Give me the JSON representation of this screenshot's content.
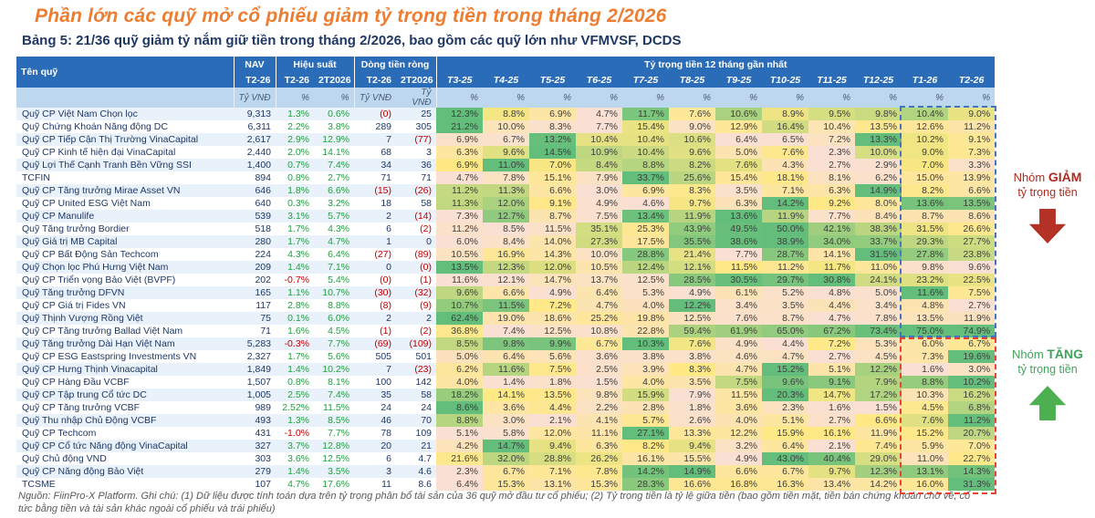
{
  "title": "Phần lớn các quỹ mở cổ phiếu giảm tỷ trọng tiền trong tháng 2/2026",
  "subtitle": "Bảng 5: 21/36 quỹ giảm tỷ nắm giữ tiền trong tháng 2/2026, bao gồm các quỹ lớn như VFMVSF, DCDS",
  "footer": "Nguồn: FiinPro-X Platform. Ghi chú: (1) Dữ liệu được tính toán dựa trên tỷ trọng phân bổ tài sản của 36 quỹ mở đầu tư cổ phiếu; (2) Tỷ trọng tiền là tỷ lệ giữa tiền (bao gồm tiền mặt, tiền bán chứng khoán chờ về, cổ tức bằng tiền và tài sản khác ngoài cổ phiếu và trái phiếu)",
  "annotations": {
    "decrease": {
      "prefix": "Nhóm ",
      "keyword": "GIẢM",
      "line2": "tỷ trọng tiền"
    },
    "increase": {
      "prefix": "Nhóm ",
      "keyword": "TĂNG",
      "line2": "tỷ trọng tiền"
    }
  },
  "colors": {
    "title_orange": "#ED7D31",
    "subtitle_navy": "#1F3864",
    "header_blue": "#2B6CB8",
    "unit_blue": "#BDD7EE",
    "positive_green": "#21A040",
    "negative_red": "#C00000",
    "decrease_annotation": "#AE2B1E",
    "increase_annotation": "#3FA35B",
    "decrease_box": "#4472C4",
    "increase_box": "#E8432F",
    "heat_low": "#FAE0D3",
    "heat_mid": "#FFE984",
    "heat_high": "#63BE7B"
  },
  "chart_data": {
    "type": "heatmap-table",
    "row_header": "Tên quỹ",
    "groups": [
      {
        "label": "NAV",
        "cols": [
          "T2-26"
        ],
        "units": [
          "Tỷ VNĐ"
        ]
      },
      {
        "label": "Hiệu suất",
        "cols": [
          "T2-26",
          "2T2026"
        ],
        "units": [
          "%",
          "%"
        ]
      },
      {
        "label": "Dòng tiền ròng",
        "cols": [
          "T2-26",
          "2T2026"
        ],
        "units": [
          "Tỷ VNĐ",
          "Tỷ VNĐ"
        ]
      },
      {
        "label": "Tỷ trọng tiền 12 tháng gần nhất",
        "cols": [
          "T3-25",
          "T4-25",
          "T5-25",
          "T6-25",
          "T7-25",
          "T8-25",
          "T9-25",
          "T10-25",
          "T11-25",
          "T12-25",
          "T1-26",
          "T2-26"
        ],
        "units": [
          "%",
          "%",
          "%",
          "%",
          "%",
          "%",
          "%",
          "%",
          "%",
          "%",
          "%",
          "%"
        ]
      }
    ],
    "decrease_group_rows": 18,
    "rows": [
      {
        "name": "Quỹ CP Việt Nam Chọn lọc",
        "nav": "9,313",
        "perf": [
          "1.3%",
          "0.6%"
        ],
        "flow": [
          "(0)",
          "25"
        ],
        "cash": [
          12.3,
          8.8,
          6.9,
          4.7,
          11.7,
          7.6,
          10.6,
          8.9,
          9.5,
          9.8,
          10.4,
          9.0
        ]
      },
      {
        "name": "Quỹ Chứng Khoán Năng động DC",
        "nav": "6,311",
        "perf": [
          "2.2%",
          "3.8%"
        ],
        "flow": [
          "289",
          "305"
        ],
        "cash": [
          21.2,
          10.0,
          8.3,
          7.7,
          15.4,
          9.0,
          12.9,
          16.4,
          10.4,
          13.5,
          12.6,
          11.2
        ]
      },
      {
        "name": "Quỹ CP Tiếp Cận Thị Trường VinaCapital",
        "nav": "2,617",
        "perf": [
          "2.9%",
          "12.9%"
        ],
        "flow": [
          "7",
          "(77)"
        ],
        "cash": [
          6.9,
          6.7,
          13.2,
          10.4,
          10.4,
          10.6,
          6.4,
          6.5,
          7.2,
          13.3,
          10.2,
          9.1
        ]
      },
      {
        "name": "Quỹ CP Kinh tế hiện đại VinaCapital",
        "nav": "2,440",
        "perf": [
          "2.0%",
          "14.1%"
        ],
        "flow": [
          "68",
          "3"
        ],
        "cash": [
          6.3,
          9.6,
          14.5,
          10.9,
          10.4,
          9.6,
          5.0,
          7.6,
          2.3,
          10.0,
          9.0,
          7.3
        ]
      },
      {
        "name": "Quỹ Lợi Thế Cạnh Tranh Bền Vững SSI",
        "nav": "1,400",
        "perf": [
          "0.7%",
          "7.4%"
        ],
        "flow": [
          "34",
          "36"
        ],
        "cash": [
          6.9,
          11.0,
          7.0,
          8.4,
          8.8,
          8.2,
          7.6,
          4.3,
          2.7,
          2.9,
          7.0,
          3.3
        ]
      },
      {
        "name": "TCFIN",
        "nav": "894",
        "perf": [
          "0.8%",
          "2.7%"
        ],
        "flow": [
          "71",
          "71"
        ],
        "cash": [
          4.7,
          7.8,
          15.1,
          7.9,
          33.7,
          25.6,
          15.4,
          18.1,
          8.1,
          6.2,
          15.0,
          13.9
        ]
      },
      {
        "name": "Quỹ CP Tăng trưởng Mirae Asset VN",
        "nav": "646",
        "perf": [
          "1.8%",
          "6.6%"
        ],
        "flow": [
          "(15)",
          "(26)"
        ],
        "cash": [
          11.2,
          11.3,
          6.6,
          3.0,
          6.9,
          8.3,
          3.5,
          7.1,
          6.3,
          14.9,
          8.2,
          6.6
        ]
      },
      {
        "name": "Quỹ CP United ESG Việt Nam",
        "nav": "640",
        "perf": [
          "0.3%",
          "3.2%"
        ],
        "flow": [
          "18",
          "58"
        ],
        "cash": [
          11.3,
          12.0,
          9.1,
          4.9,
          4.6,
          9.7,
          6.3,
          14.2,
          9.2,
          8.0,
          13.6,
          13.5
        ]
      },
      {
        "name": "Quỹ CP Manulife",
        "nav": "539",
        "perf": [
          "3.1%",
          "5.7%"
        ],
        "flow": [
          "2",
          "(14)"
        ],
        "cash": [
          7.3,
          12.7,
          8.7,
          7.5,
          13.4,
          11.9,
          13.6,
          11.9,
          7.7,
          8.4,
          8.7,
          8.6
        ]
      },
      {
        "name": "Quỹ Tăng trưởng Bordier",
        "nav": "518",
        "perf": [
          "1.7%",
          "4.3%"
        ],
        "flow": [
          "6",
          "(2)"
        ],
        "cash": [
          11.2,
          8.5,
          11.5,
          35.1,
          25.3,
          43.9,
          49.5,
          50.0,
          42.1,
          38.3,
          31.5,
          26.6
        ]
      },
      {
        "name": "Quỹ Giá trị MB Capital",
        "nav": "280",
        "perf": [
          "1.7%",
          "4.7%"
        ],
        "flow": [
          "1",
          "0"
        ],
        "cash": [
          6.0,
          8.4,
          14.0,
          27.3,
          17.5,
          35.5,
          38.6,
          38.9,
          34.0,
          33.7,
          29.3,
          27.7
        ]
      },
      {
        "name": "Quỹ CP Bất Động Sản Techcom",
        "nav": "224",
        "perf": [
          "4.3%",
          "6.4%"
        ],
        "flow": [
          "(27)",
          "(89)"
        ],
        "cash": [
          10.5,
          16.9,
          14.3,
          10.0,
          28.8,
          21.4,
          7.7,
          28.7,
          14.1,
          31.5,
          27.8,
          23.8
        ]
      },
      {
        "name": "Quỹ Chọn lọc Phú Hưng Việt Nam",
        "nav": "209",
        "perf": [
          "1.4%",
          "7.1%"
        ],
        "flow": [
          "0",
          "(0)"
        ],
        "cash": [
          13.5,
          12.3,
          12.0,
          10.5,
          12.4,
          12.1,
          11.5,
          11.2,
          11.7,
          11.0,
          9.8,
          9.6
        ]
      },
      {
        "name": "Quỹ CP Triển vọng Bảo Việt (BVPF)",
        "nav": "202",
        "perf": [
          "-0.7%",
          "5.4%"
        ],
        "flow": [
          "(0)",
          "(1)"
        ],
        "cash": [
          11.6,
          12.1,
          14.7,
          13.7,
          12.5,
          28.5,
          30.5,
          29.7,
          30.8,
          24.1,
          23.2,
          22.5
        ]
      },
      {
        "name": "Quỹ Tăng trưởng DFVN",
        "nav": "165",
        "perf": [
          "1.1%",
          "10.7%"
        ],
        "flow": [
          "(30)",
          "(32)"
        ],
        "cash": [
          9.6,
          6.6,
          4.9,
          6.4,
          5.3,
          4.9,
          6.1,
          5.2,
          4.8,
          5.0,
          11.6,
          7.5
        ]
      },
      {
        "name": "Quỹ CP Giá trị Fides VN",
        "nav": "117",
        "perf": [
          "2.8%",
          "8.8%"
        ],
        "flow": [
          "(8)",
          "(9)"
        ],
        "cash": [
          10.7,
          11.5,
          7.2,
          4.7,
          4.0,
          12.2,
          3.4,
          3.5,
          4.4,
          3.4,
          4.8,
          2.7
        ]
      },
      {
        "name": "Quỹ Thịnh Vượng Rồng Việt",
        "nav": "75",
        "perf": [
          "0.1%",
          "6.0%"
        ],
        "flow": [
          "2",
          "2"
        ],
        "cash": [
          62.4,
          19.0,
          18.6,
          25.2,
          19.8,
          12.5,
          7.6,
          8.7,
          4.7,
          7.8,
          13.5,
          11.9
        ]
      },
      {
        "name": "Quỹ CP Tăng trưởng Ballad Việt Nam",
        "nav": "71",
        "perf": [
          "1.6%",
          "4.5%"
        ],
        "flow": [
          "(1)",
          "(2)"
        ],
        "cash": [
          36.8,
          7.4,
          12.5,
          10.8,
          22.8,
          59.4,
          61.9,
          65.0,
          67.2,
          73.4,
          75.0,
          74.9
        ]
      },
      {
        "name": "Quỹ Tăng trưởng Dài Hạn Việt Nam",
        "nav": "5,283",
        "perf": [
          "-0.3%",
          "7.7%"
        ],
        "flow": [
          "(69)",
          "(109)"
        ],
        "cash": [
          8.5,
          9.8,
          9.9,
          6.7,
          10.3,
          7.6,
          4.9,
          4.4,
          7.2,
          5.3,
          6.0,
          6.7
        ]
      },
      {
        "name": "Quỹ CP ESG Eastspring Investments VN",
        "nav": "2,327",
        "perf": [
          "1.7%",
          "5.6%"
        ],
        "flow": [
          "505",
          "501"
        ],
        "cash": [
          5.0,
          6.4,
          5.6,
          3.6,
          3.8,
          3.8,
          4.6,
          4.7,
          2.7,
          4.5,
          7.3,
          19.6
        ]
      },
      {
        "name": "Quỹ CP Hưng Thịnh Vinacapital",
        "nav": "1,849",
        "perf": [
          "1.4%",
          "10.2%"
        ],
        "flow": [
          "7",
          "(23)"
        ],
        "cash": [
          6.2,
          11.6,
          7.5,
          2.5,
          3.9,
          8.3,
          4.7,
          15.2,
          5.1,
          12.2,
          1.6,
          3.0
        ]
      },
      {
        "name": "Quỹ CP Hàng Đầu VCBF",
        "nav": "1,507",
        "perf": [
          "0.8%",
          "8.1%"
        ],
        "flow": [
          "100",
          "142"
        ],
        "cash": [
          4.0,
          1.4,
          1.8,
          1.5,
          4.0,
          3.5,
          7.5,
          9.6,
          9.1,
          7.9,
          8.8,
          10.2
        ]
      },
      {
        "name": "Quỹ CP Tập trung Cổ tức DC",
        "nav": "1,005",
        "perf": [
          "2.5%",
          "7.4%"
        ],
        "flow": [
          "35",
          "58"
        ],
        "cash": [
          18.2,
          14.1,
          13.5,
          9.8,
          15.9,
          7.9,
          11.5,
          20.3,
          14.7,
          17.2,
          10.3,
          16.2
        ]
      },
      {
        "name": "Quỹ CP Tăng trưởng VCBF",
        "nav": "989",
        "perf": [
          "2.52%",
          "11.5%"
        ],
        "flow": [
          "24",
          "24"
        ],
        "cash": [
          8.6,
          3.6,
          4.4,
          2.2,
          2.8,
          1.8,
          3.6,
          2.3,
          1.6,
          1.5,
          4.5,
          6.8
        ]
      },
      {
        "name": "Quỹ Thu nhập Chủ Động VCBF",
        "nav": "493",
        "perf": [
          "1.3%",
          "8.5%"
        ],
        "flow": [
          "46",
          "70"
        ],
        "cash": [
          8.8,
          3.0,
          2.1,
          4.1,
          5.7,
          2.6,
          4.0,
          5.1,
          2.7,
          6.6,
          7.6,
          11.2
        ]
      },
      {
        "name": "Quỹ CP Techcom",
        "nav": "431",
        "perf": [
          "-1.0%",
          "7.7%"
        ],
        "flow": [
          "78",
          "109"
        ],
        "cash": [
          5.1,
          5.8,
          12.0,
          11.1,
          27.1,
          13.3,
          12.2,
          15.9,
          16.1,
          11.9,
          15.2,
          20.7
        ]
      },
      {
        "name": "Quỹ CP Cổ tức Năng động VinaCapital",
        "nav": "327",
        "perf": [
          "3.7%",
          "12.8%"
        ],
        "flow": [
          "20",
          "21"
        ],
        "cash": [
          4.2,
          14.7,
          9.4,
          6.3,
          8.2,
          9.4,
          3.2,
          6.4,
          2.1,
          7.4,
          5.9,
          7.0
        ]
      },
      {
        "name": "Quỹ Chủ động VND",
        "nav": "303",
        "perf": [
          "3.6%",
          "12.5%"
        ],
        "flow": [
          "6",
          "4.7"
        ],
        "cash": [
          21.6,
          32.0,
          28.8,
          26.2,
          16.1,
          15.5,
          4.9,
          43.0,
          40.4,
          29.0,
          11.0,
          22.7
        ]
      },
      {
        "name": "Quỹ CP Năng động Bảo Việt",
        "nav": "279",
        "perf": [
          "1.4%",
          "3.5%"
        ],
        "flow": [
          "3",
          "4.6"
        ],
        "cash": [
          2.3,
          6.7,
          7.1,
          7.8,
          14.2,
          14.9,
          6.6,
          6.7,
          9.7,
          12.3,
          13.1,
          14.3
        ]
      },
      {
        "name": "TCSME",
        "nav": "107",
        "perf": [
          "4.7%",
          "17.6%"
        ],
        "flow": [
          "11",
          "8.6"
        ],
        "cash": [
          6.4,
          15.3,
          13.1,
          15.3,
          28.3,
          16.6,
          16.8,
          16.3,
          13.4,
          14.2,
          16.0,
          31.3
        ]
      }
    ]
  }
}
